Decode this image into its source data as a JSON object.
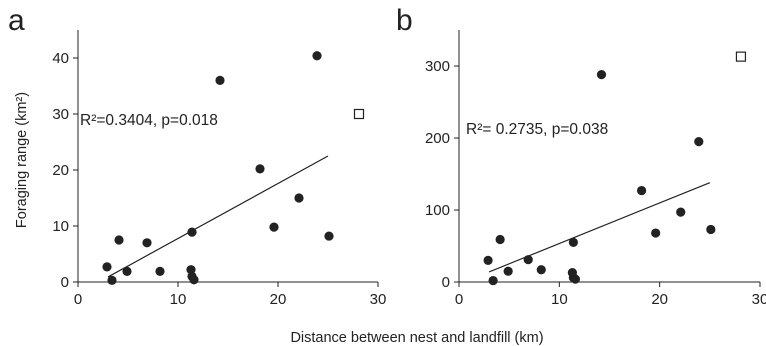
{
  "figure": {
    "shared_xlabel": "Distance between nest and landfill (km)"
  },
  "chart_data": [
    {
      "type": "scatter",
      "panel_label": "a",
      "ylabel": "Foraging range (km²)",
      "xlim": [
        0,
        30
      ],
      "ylim": [
        0,
        45
      ],
      "xticks": [
        0,
        10,
        20,
        30
      ],
      "yticks": [
        0,
        10,
        20,
        30,
        40
      ],
      "xtick_labels": [
        "0",
        "10",
        "20",
        "30"
      ],
      "ytick_labels": [
        "0",
        "10",
        "20",
        "30",
        "40"
      ],
      "grid": false,
      "annotation": "R²=0.3404, p=0.018",
      "series": [
        {
          "marker": "filled-circle",
          "color": "#222222",
          "points": [
            {
              "x": 2.9,
              "y": 2.7
            },
            {
              "x": 3.4,
              "y": 0.3
            },
            {
              "x": 4.1,
              "y": 7.5
            },
            {
              "x": 4.9,
              "y": 1.9
            },
            {
              "x": 6.9,
              "y": 7.0
            },
            {
              "x": 8.2,
              "y": 1.9
            },
            {
              "x": 11.3,
              "y": 2.2
            },
            {
              "x": 11.4,
              "y": 8.9
            },
            {
              "x": 11.4,
              "y": 1.0
            },
            {
              "x": 11.6,
              "y": 0.4
            },
            {
              "x": 14.2,
              "y": 36.0
            },
            {
              "x": 18.2,
              "y": 20.2
            },
            {
              "x": 19.6,
              "y": 9.8
            },
            {
              "x": 22.1,
              "y": 15.0
            },
            {
              "x": 23.9,
              "y": 40.4
            },
            {
              "x": 25.1,
              "y": 8.2
            }
          ]
        },
        {
          "marker": "open-square",
          "color": "#222222",
          "points": [
            {
              "x": 28.1,
              "y": 30.0
            }
          ]
        }
      ],
      "trendline": {
        "x": [
          3.0,
          25.0
        ],
        "y": [
          0.9,
          22.5
        ]
      }
    },
    {
      "type": "scatter",
      "panel_label": "b",
      "ylabel": "",
      "xlim": [
        0,
        30
      ],
      "ylim": [
        0,
        350
      ],
      "xticks": [
        0,
        10,
        20,
        30
      ],
      "yticks": [
        0,
        100,
        200,
        300
      ],
      "xtick_labels": [
        "0",
        "10",
        "20",
        "30"
      ],
      "ytick_labels": [
        "0",
        "100",
        "200",
        "300"
      ],
      "grid": false,
      "annotation": "R²= 0.2735, p=0.038",
      "series": [
        {
          "marker": "filled-circle",
          "color": "#222222",
          "points": [
            {
              "x": 2.9,
              "y": 30
            },
            {
              "x": 3.4,
              "y": 2
            },
            {
              "x": 4.1,
              "y": 59
            },
            {
              "x": 4.9,
              "y": 15
            },
            {
              "x": 6.9,
              "y": 31
            },
            {
              "x": 8.2,
              "y": 17
            },
            {
              "x": 11.3,
              "y": 13
            },
            {
              "x": 11.4,
              "y": 55
            },
            {
              "x": 11.4,
              "y": 6
            },
            {
              "x": 11.6,
              "y": 4
            },
            {
              "x": 14.2,
              "y": 288
            },
            {
              "x": 18.2,
              "y": 127
            },
            {
              "x": 19.6,
              "y": 68
            },
            {
              "x": 22.1,
              "y": 97
            },
            {
              "x": 23.9,
              "y": 195
            },
            {
              "x": 25.1,
              "y": 73
            }
          ]
        },
        {
          "marker": "open-square",
          "color": "#222222",
          "points": [
            {
              "x": 28.1,
              "y": 313
            }
          ]
        }
      ],
      "trendline": {
        "x": [
          3.0,
          25.0
        ],
        "y": [
          14,
          138
        ]
      }
    }
  ]
}
